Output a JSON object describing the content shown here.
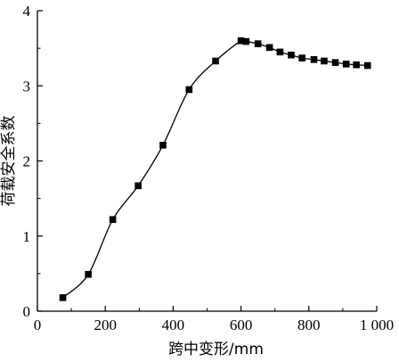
{
  "chart_data": {
    "type": "line",
    "title": "",
    "xlabel": "跨中变形/mm",
    "ylabel": "荷载安全系数",
    "xlim": [
      0,
      1000
    ],
    "ylim": [
      0,
      4
    ],
    "x_ticks": [
      0,
      200,
      400,
      600,
      800,
      1000
    ],
    "x_tick_labels": [
      "0",
      "200",
      "400",
      "600",
      "800",
      "1 000"
    ],
    "y_ticks": [
      0,
      1,
      2,
      3,
      4
    ],
    "y_tick_labels": [
      "0",
      "1",
      "2",
      "3",
      "4"
    ],
    "grid": false,
    "legend": "none",
    "series": [
      {
        "marker": "filled-square",
        "line": "smooth",
        "color": "#000000",
        "x": [
          75,
          150,
          222,
          297,
          370,
          447,
          525,
          600,
          615,
          650,
          684,
          715,
          748,
          780,
          815,
          845,
          878,
          910,
          940,
          973
        ],
        "y": [
          0.18,
          0.49,
          1.22,
          1.67,
          2.21,
          2.95,
          3.33,
          3.6,
          3.59,
          3.56,
          3.51,
          3.45,
          3.41,
          3.37,
          3.35,
          3.33,
          3.31,
          3.29,
          3.28,
          3.27
        ]
      }
    ]
  }
}
